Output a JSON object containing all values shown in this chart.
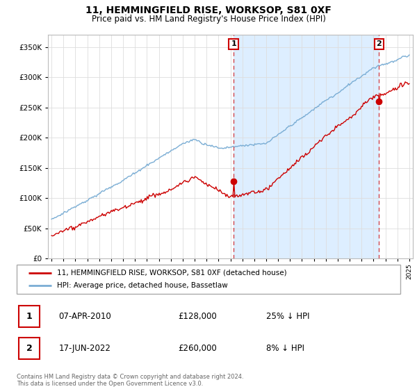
{
  "title": "11, HEMMINGFIELD RISE, WORKSOP, S81 0XF",
  "subtitle": "Price paid vs. HM Land Registry's House Price Index (HPI)",
  "ytick_values": [
    0,
    50000,
    100000,
    150000,
    200000,
    250000,
    300000,
    350000
  ],
  "ylim": [
    0,
    370000
  ],
  "legend_property": "11, HEMMINGFIELD RISE, WORKSOP, S81 0XF (detached house)",
  "legend_hpi": "HPI: Average price, detached house, Bassetlaw",
  "property_color": "#cc0000",
  "hpi_color": "#7aadd4",
  "shade_color": "#ddeeff",
  "sale1_date": "07-APR-2010",
  "sale1_price": 128000,
  "sale1_label": "1",
  "sale1_pct": "25% ↓ HPI",
  "sale2_date": "17-JUN-2022",
  "sale2_price": 260000,
  "sale2_label": "2",
  "sale2_pct": "8% ↓ HPI",
  "footnote": "Contains HM Land Registry data © Crown copyright and database right 2024.\nThis data is licensed under the Open Government Licence v3.0.",
  "vline1_x": 2010.27,
  "vline2_x": 2022.46,
  "background_color": "#ffffff",
  "grid_color": "#dddddd",
  "xlim_left": 1994.7,
  "xlim_right": 2025.3
}
